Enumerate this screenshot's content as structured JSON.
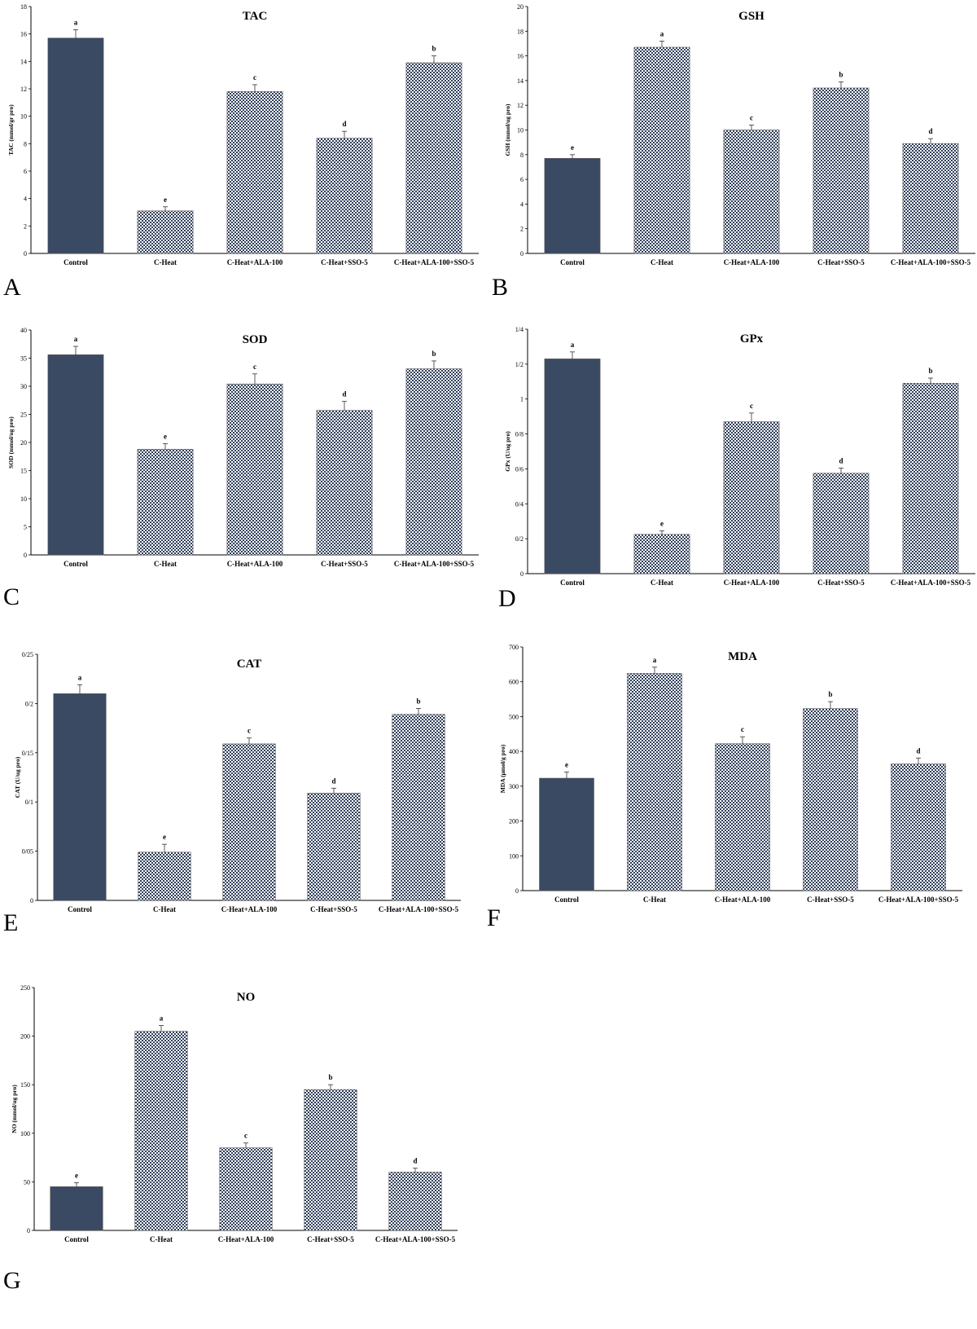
{
  "figure": {
    "bar_colors": {
      "control": "#3b4a63",
      "treated_dark": "#2f3f5b",
      "treated_light": "#ffffff"
    }
  },
  "chart_data": [
    {
      "panel": "A",
      "type": "bar",
      "title": "TAC",
      "ylabel": "TAC (mmol/gr pro)",
      "categories": [
        "Control",
        "C-Heat",
        "C-Heat+ALA-100",
        "C-Heat+SSO-5",
        "C-Heat+ALA-100+SSO-5"
      ],
      "values": [
        15.7,
        3.1,
        11.8,
        8.4,
        13.9
      ],
      "errors": [
        0.6,
        0.3,
        0.5,
        0.5,
        0.5
      ],
      "letters": [
        "a",
        "e",
        "c",
        "d",
        "b"
      ],
      "ylim": [
        0,
        18
      ],
      "yticks": [
        0,
        2,
        4,
        6,
        8,
        10,
        12,
        14,
        16,
        18
      ],
      "ytick_labels": [
        "0",
        "2",
        "4",
        "6",
        "8",
        "10",
        "12",
        "14",
        "16",
        "18"
      ]
    },
    {
      "panel": "B",
      "type": "bar",
      "title": "GSH",
      "ylabel": "GSH (mmol/ug pro)",
      "categories": [
        "Control",
        "C-Heat",
        "C-Heat+ALA-100",
        "C-Heat+SSO-5",
        "C-Heat+ALA-100+SSO-5"
      ],
      "values": [
        7.7,
        16.7,
        10.0,
        13.4,
        8.9
      ],
      "errors": [
        0.3,
        0.5,
        0.4,
        0.5,
        0.4
      ],
      "letters": [
        "e",
        "a",
        "c",
        "b",
        "d"
      ],
      "ylim": [
        0,
        20
      ],
      "yticks": [
        0,
        2,
        4,
        6,
        8,
        10,
        12,
        14,
        16,
        18,
        20
      ],
      "ytick_labels": [
        "0",
        "2",
        "4",
        "6",
        "8",
        "10",
        "12",
        "14",
        "16",
        "18",
        "20"
      ]
    },
    {
      "panel": "C",
      "type": "bar",
      "title": "SOD",
      "ylabel": "SOD (mmol/ug pro)",
      "categories": [
        "Control",
        "C-Heat",
        "C-Heat+ALA-100",
        "C-Heat+SSO-5",
        "C-Heat+ALA-100+SSO-5"
      ],
      "values": [
        35.6,
        18.8,
        30.4,
        25.7,
        33.1
      ],
      "errors": [
        1.5,
        1.0,
        1.8,
        1.6,
        1.4
      ],
      "letters": [
        "a",
        "e",
        "c",
        "d",
        "b"
      ],
      "ylim": [
        0,
        40
      ],
      "yticks": [
        0,
        5,
        10,
        15,
        20,
        25,
        30,
        35,
        40
      ],
      "ytick_labels": [
        "0",
        "5",
        "10",
        "15",
        "20",
        "25",
        "30",
        "35",
        "40"
      ]
    },
    {
      "panel": "D",
      "type": "bar",
      "title": "GPx",
      "ylabel": "GPx (U/ug pro)",
      "categories": [
        "Control",
        "C-Heat",
        "C-Heat+ALA-100",
        "C-Heat+SSO-5",
        "C-Heat+ALA-100+SSO-5"
      ],
      "values": [
        1.23,
        0.225,
        0.87,
        0.575,
        1.09
      ],
      "errors": [
        0.04,
        0.02,
        0.05,
        0.03,
        0.03
      ],
      "letters": [
        "a",
        "e",
        "c",
        "d",
        "b"
      ],
      "ylim": [
        0,
        1.4
      ],
      "yticks": [
        0,
        0.2,
        0.4,
        0.6,
        0.8,
        1.0,
        1.2,
        1.4
      ],
      "ytick_labels": [
        "0",
        "0/2",
        "0/4",
        "0/6",
        "0/8",
        "1",
        "1/2",
        "1/4"
      ]
    },
    {
      "panel": "E",
      "type": "bar",
      "title": "CAT",
      "ylabel": "CAT (U/ug pro)",
      "categories": [
        "Control",
        "C-Heat",
        "C-Heat+ALA-100",
        "C-Heat+SSO-5",
        "C-Heat+ALA-100+SSO-5"
      ],
      "values": [
        0.21,
        0.049,
        0.159,
        0.109,
        0.189
      ],
      "errors": [
        0.009,
        0.008,
        0.006,
        0.005,
        0.006
      ],
      "letters": [
        "a",
        "e",
        "c",
        "d",
        "b"
      ],
      "ylim": [
        0,
        0.25
      ],
      "yticks": [
        0,
        0.05,
        0.1,
        0.15,
        0.2,
        0.25
      ],
      "ytick_labels": [
        "0",
        "0/05",
        "0/1",
        "0/15",
        "0/2",
        "0/25"
      ]
    },
    {
      "panel": "F",
      "type": "bar",
      "title": "MDA",
      "ylabel": "MDA (μmol/g pro)",
      "categories": [
        "Control",
        "C-Heat",
        "C-Heat+ALA-100",
        "C-Heat+SSO-5",
        "C-Heat+ALA-100+SSO-5"
      ],
      "values": [
        323,
        624,
        422,
        523,
        364
      ],
      "errors": [
        18,
        18,
        20,
        20,
        17
      ],
      "letters": [
        "e",
        "a",
        "c",
        "b",
        "d"
      ],
      "ylim": [
        0,
        700
      ],
      "yticks": [
        0,
        100,
        200,
        300,
        400,
        500,
        600,
        700
      ],
      "ytick_labels": [
        "0",
        "100",
        "200",
        "300",
        "400",
        "500",
        "600",
        "700"
      ]
    },
    {
      "panel": "G",
      "type": "bar",
      "title": "NO",
      "ylabel": "NO (mmol/ug pro)",
      "categories": [
        "Control",
        "C-Heat",
        "C-Heat+ALA-100",
        "C-Heat+SSO-5",
        "C-Heat+ALA-100+SSO-5"
      ],
      "values": [
        45,
        205,
        85,
        145,
        60
      ],
      "errors": [
        4,
        6,
        5,
        5,
        4
      ],
      "letters": [
        "e",
        "a",
        "c",
        "b",
        "d"
      ],
      "ylim": [
        0,
        250
      ],
      "yticks": [
        0,
        50,
        100,
        150,
        200,
        250
      ],
      "ytick_labels": [
        "0",
        "50",
        "100",
        "150",
        "200",
        "250"
      ]
    }
  ]
}
